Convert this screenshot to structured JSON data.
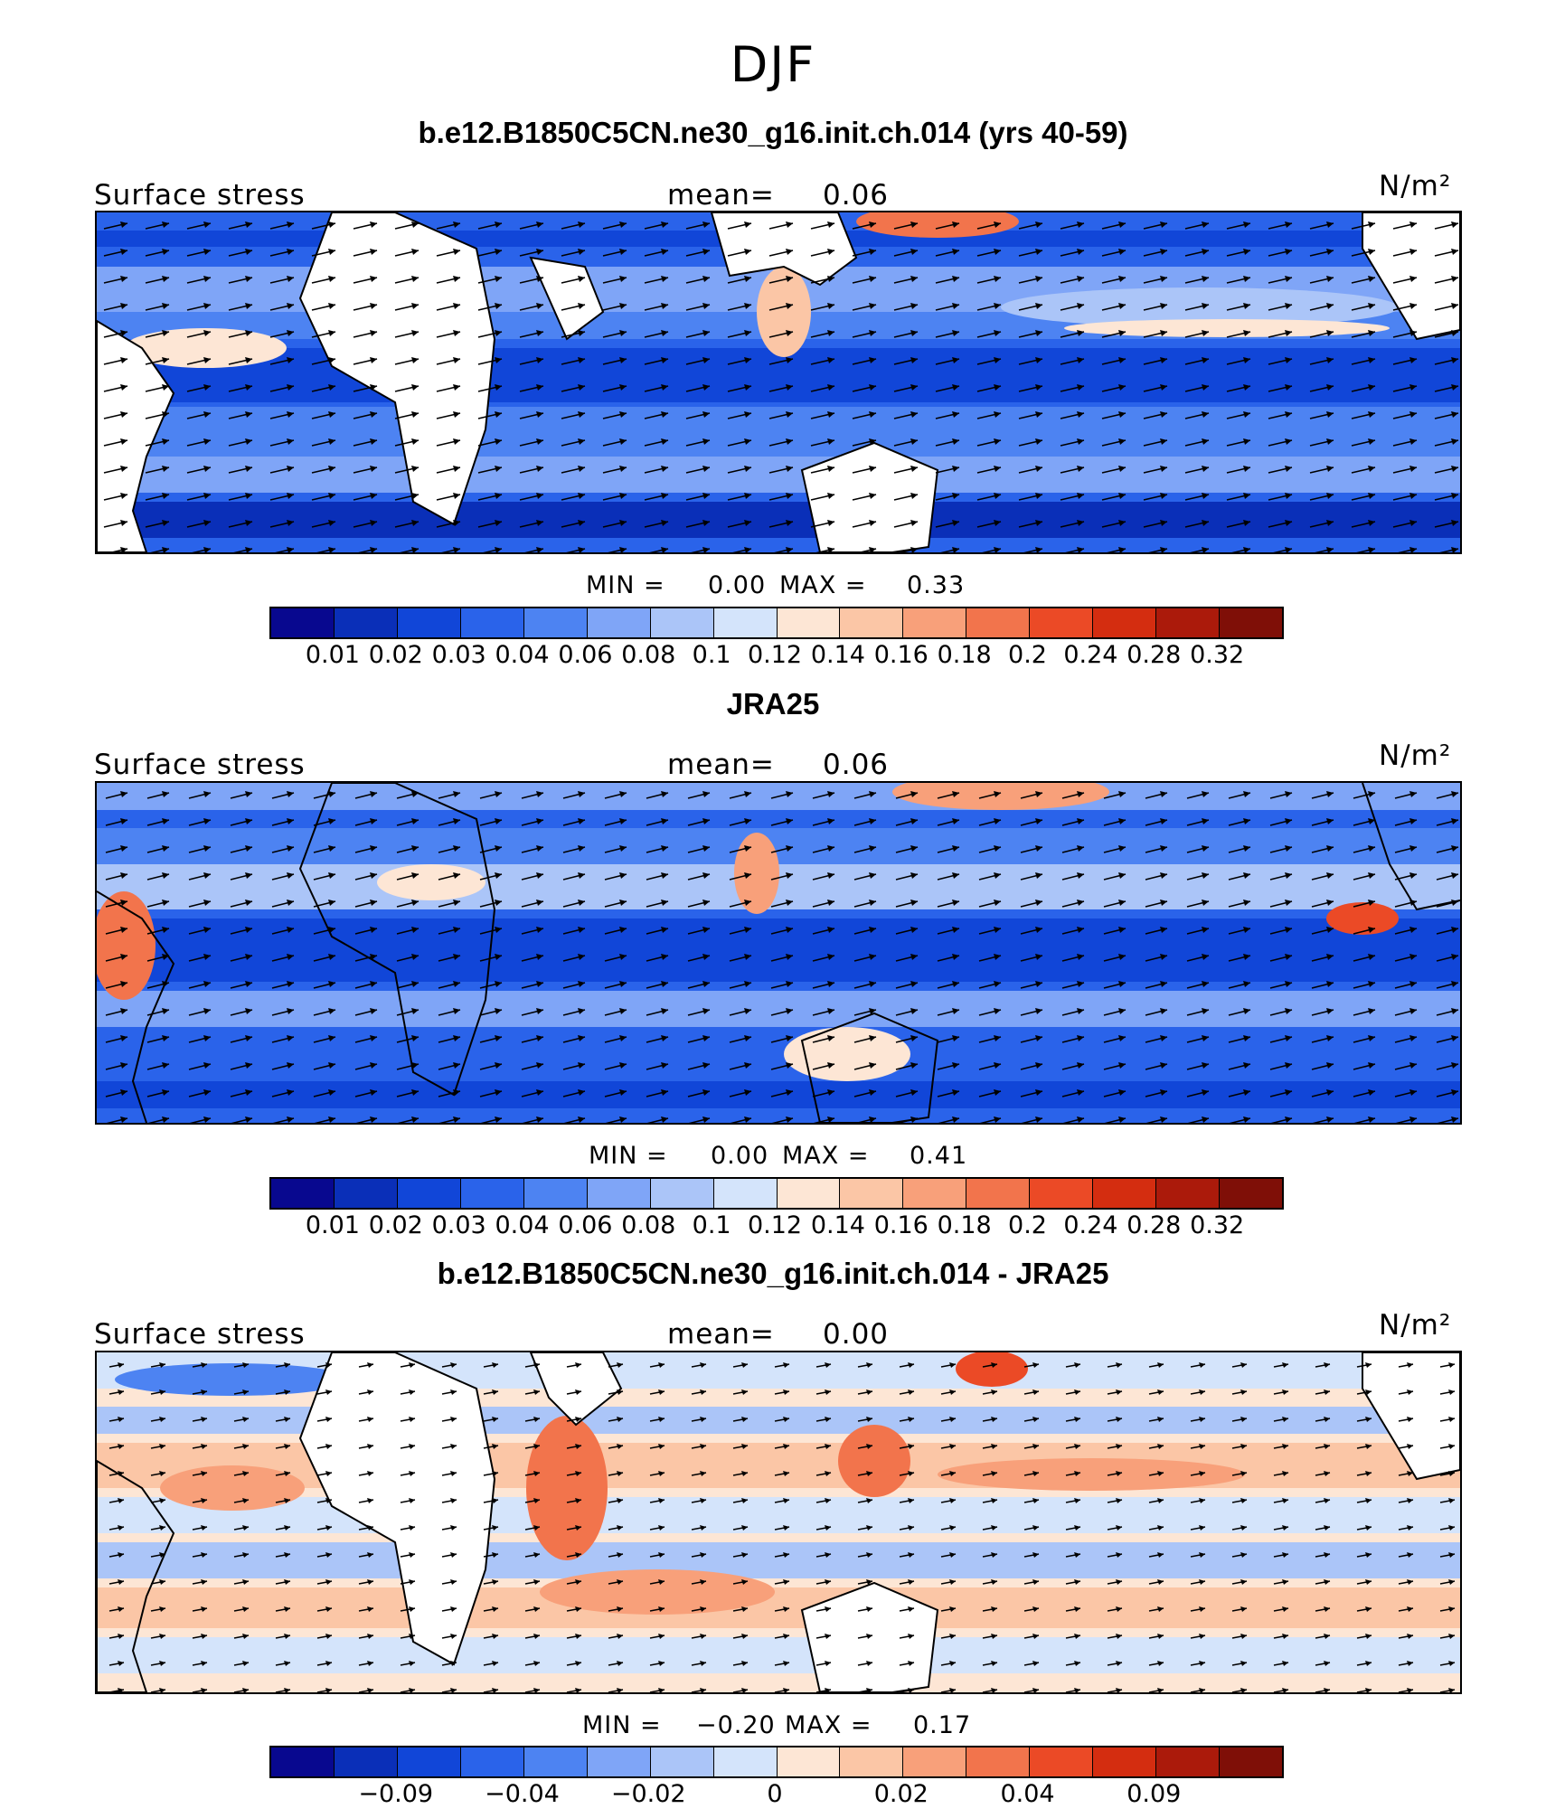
{
  "title": "DJF",
  "colors": [
    "#08088f",
    "#0a2fb8",
    "#1146d8",
    "#2a63ea",
    "#4d83f2",
    "#7fa5f7",
    "#abc5f8",
    "#d4e4fb",
    "#fde6d5",
    "#fbc6a6",
    "#f8a07a",
    "#f2744c",
    "#eb4a26",
    "#d42d10",
    "#ab1a0b",
    "#7f0f07"
  ],
  "panels": [
    {
      "title": "b.e12.B1850C5CN.ne30_g16.init.ch.014 (yrs 40-59)",
      "variable": "Surface stress",
      "mean_label": "mean=",
      "mean_value": "0.06",
      "units": "N/m²",
      "min_label": "MIN =",
      "min_value": "0.00",
      "max_label": "MAX =",
      "max_value": "0.33",
      "colorbar_ticks": [
        "0.01",
        "0.02",
        "0.03",
        "0.04",
        "0.06",
        "0.08",
        "0.1",
        "0.12",
        "0.14",
        "0.16",
        "0.18",
        "0.2",
        "0.24",
        "0.28",
        "0.32"
      ]
    },
    {
      "title": "JRA25",
      "variable": "Surface stress",
      "mean_label": "mean=",
      "mean_value": "0.06",
      "units": "N/m²",
      "min_label": "MIN =",
      "min_value": "0.00",
      "max_label": "MAX =",
      "max_value": "0.41",
      "colorbar_ticks": [
        "0.01",
        "0.02",
        "0.03",
        "0.04",
        "0.06",
        "0.08",
        "0.1",
        "0.12",
        "0.14",
        "0.16",
        "0.18",
        "0.2",
        "0.24",
        "0.28",
        "0.32"
      ]
    },
    {
      "title": "b.e12.B1850C5CN.ne30_g16.init.ch.014 - JRA25",
      "variable": "Surface stress",
      "mean_label": "mean=",
      "mean_value": "0.00",
      "units": "N/m²",
      "min_label": "MIN =",
      "min_value": "−0.20",
      "max_label": "MAX =",
      "max_value": "0.17",
      "colorbar_ticks": [
        "−0.09",
        "−0.04",
        "−0.02",
        "0",
        "0.02",
        "0.04",
        "0.09"
      ]
    }
  ]
}
